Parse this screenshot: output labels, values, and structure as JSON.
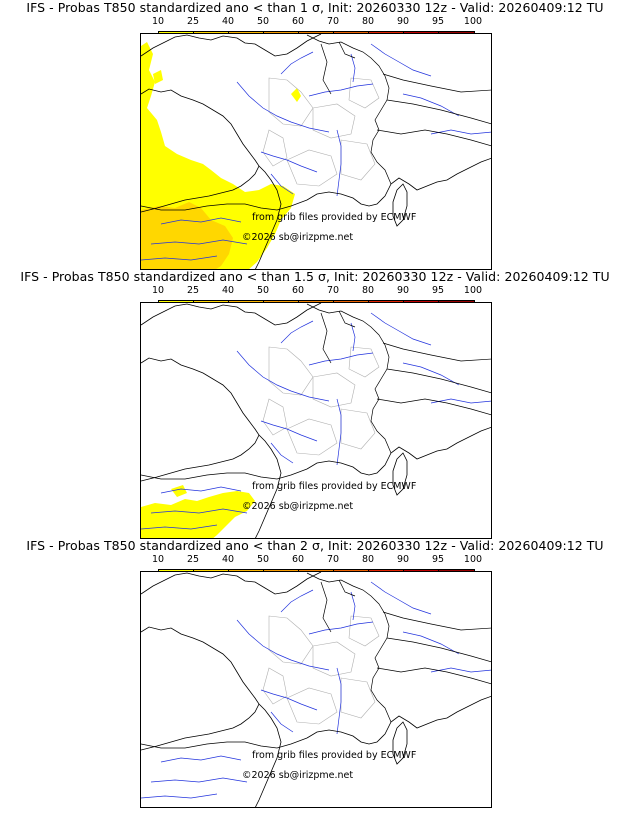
{
  "colorbar": {
    "labels": [
      "10",
      "25",
      "40",
      "50",
      "60",
      "70",
      "80",
      "90",
      "95",
      "100"
    ],
    "colors": [
      "#ffff00",
      "#ffd700",
      "#f9b400",
      "#f59a00",
      "#f07f00",
      "#ea5f00",
      "#e12200",
      "#c00000",
      "#990000",
      "#660000"
    ]
  },
  "panels": [
    {
      "title": "IFS - Probas T850  standardized ano < than 1 σ, Init: 20260330 12z - Valid: 20260409:12 TU",
      "credit": "from grib files provided by ECMWF",
      "copyright": "©2026 sb@irizpme.net",
      "coverage": "high"
    },
    {
      "title": "IFS - Probas T850  standardized ano < than 1.5 σ, Init: 20260330 12z - Valid: 20260409:12 TU",
      "credit": "from grib files provided by ECMWF",
      "copyright": "©2026 sb@irizpme.net",
      "coverage": "low"
    },
    {
      "title": "IFS - Probas T850  standardized ano < than 2 σ, Init: 20260330 12z - Valid: 20260409:12 TU",
      "credit": "from grib files provided by ECMWF",
      "copyright": "©2026 sb@irizpme.net",
      "coverage": "none"
    }
  ]
}
